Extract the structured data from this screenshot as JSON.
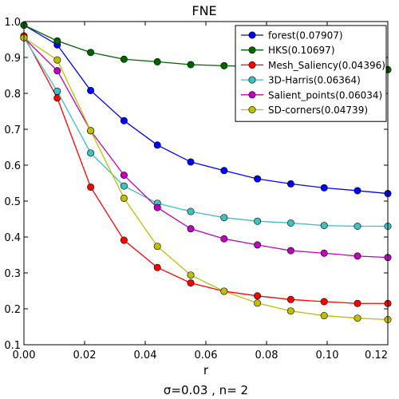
{
  "chart_data": {
    "type": "line",
    "title": "FNE",
    "xlabel": "r",
    "ylabel": "",
    "caption": "σ=0.03  , n= 2",
    "xlim": [
      0.0,
      0.12
    ],
    "ylim": [
      0.1,
      1.0
    ],
    "xticks": [
      "0.00",
      "0.02",
      "0.04",
      "0.06",
      "0.08",
      "0.10",
      "0.12"
    ],
    "yticks": [
      "0.1",
      "0.2",
      "0.3",
      "0.4",
      "0.5",
      "0.6",
      "0.7",
      "0.8",
      "0.9",
      "1.0"
    ],
    "legend_position": "top-right",
    "x": [
      0.0,
      0.011,
      0.022,
      0.033,
      0.044,
      0.055,
      0.066,
      0.077,
      0.088,
      0.099,
      0.11,
      0.12
    ],
    "series": [
      {
        "name": "forest(0.07907)",
        "color": "#0000ff",
        "values": [
          0.99,
          0.935,
          0.808,
          0.724,
          0.656,
          0.609,
          0.585,
          0.562,
          0.548,
          0.537,
          0.529,
          0.521
        ]
      },
      {
        "name": "HKS(0.10697)",
        "color": "#006400",
        "values": [
          0.99,
          0.946,
          0.914,
          0.895,
          0.888,
          0.88,
          0.877,
          0.874,
          0.872,
          0.87,
          0.868,
          0.866
        ]
      },
      {
        "name": "Mesh_Saliency(0.04396)",
        "color": "#ff0000",
        "values": [
          0.96,
          0.787,
          0.539,
          0.391,
          0.315,
          0.272,
          0.249,
          0.236,
          0.226,
          0.22,
          0.215,
          0.215
        ]
      },
      {
        "name": "3D-Harris(0.06364)",
        "color": "#40c0c0",
        "values": [
          0.955,
          0.806,
          0.634,
          0.542,
          0.494,
          0.471,
          0.454,
          0.444,
          0.439,
          0.432,
          0.43,
          0.43
        ]
      },
      {
        "name": "Salient_points(0.06034)",
        "color": "#bf00bf",
        "values": [
          0.955,
          0.863,
          0.696,
          0.572,
          0.482,
          0.423,
          0.395,
          0.378,
          0.362,
          0.355,
          0.347,
          0.343
        ]
      },
      {
        "name": "SD-corners(0.04739)",
        "color": "#bfbf00",
        "values": [
          0.955,
          0.893,
          0.696,
          0.508,
          0.374,
          0.294,
          0.249,
          0.216,
          0.194,
          0.181,
          0.174,
          0.17
        ]
      }
    ]
  }
}
